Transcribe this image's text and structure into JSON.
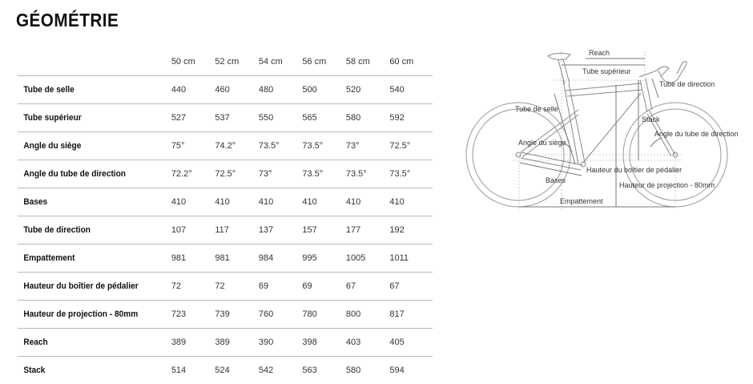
{
  "title": "GÉOMÉTRIE",
  "table": {
    "sizes": [
      "50 cm",
      "52 cm",
      "54 cm",
      "56 cm",
      "58 cm",
      "60 cm"
    ],
    "rows": [
      {
        "label": "Tube de selle",
        "values": [
          "440",
          "460",
          "480",
          "500",
          "520",
          "540"
        ]
      },
      {
        "label": "Tube supérieur",
        "values": [
          "527",
          "537",
          "550",
          "565",
          "580",
          "592"
        ]
      },
      {
        "label": "Angle du siège",
        "values": [
          "75°",
          "74.2°",
          "73.5°",
          "73.5°",
          "73°",
          "72.5°"
        ]
      },
      {
        "label": "Angle du tube de direction",
        "values": [
          "72.2°",
          "72.5°",
          "73°",
          "73.5°",
          "73.5°",
          "73.5°"
        ]
      },
      {
        "label": "Bases",
        "values": [
          "410",
          "410",
          "410",
          "410",
          "410",
          "410"
        ]
      },
      {
        "label": "Tube de direction",
        "values": [
          "107",
          "117",
          "137",
          "157",
          "177",
          "192"
        ]
      },
      {
        "label": "Empattement",
        "values": [
          "981",
          "981",
          "984",
          "995",
          "1005",
          "1011"
        ]
      },
      {
        "label": "Hauteur du boîtier de pédalier",
        "values": [
          "72",
          "72",
          "69",
          "69",
          "67",
          "67"
        ]
      },
      {
        "label": "Hauteur de projection - 80mm",
        "values": [
          "723",
          "739",
          "760",
          "780",
          "800",
          "817"
        ]
      },
      {
        "label": "Reach",
        "values": [
          "389",
          "389",
          "390",
          "398",
          "403",
          "405"
        ]
      },
      {
        "label": "Stack",
        "values": [
          "514",
          "524",
          "542",
          "563",
          "580",
          "594"
        ]
      }
    ]
  },
  "diagram": {
    "reach": "Reach",
    "top_tube": "Tube supérieur",
    "head_tube": "Tube de direction",
    "seat_tube": "Tube de selle",
    "stack": "Stack",
    "head_angle": "Angle du tube de direction",
    "seat_angle": "Angle du siège",
    "bb_drop": "Hauteur du boîtier de pédalier",
    "chainstays": "Bases",
    "standover": "Hauteur de projection - 80mm",
    "wheelbase": "Empattement"
  }
}
